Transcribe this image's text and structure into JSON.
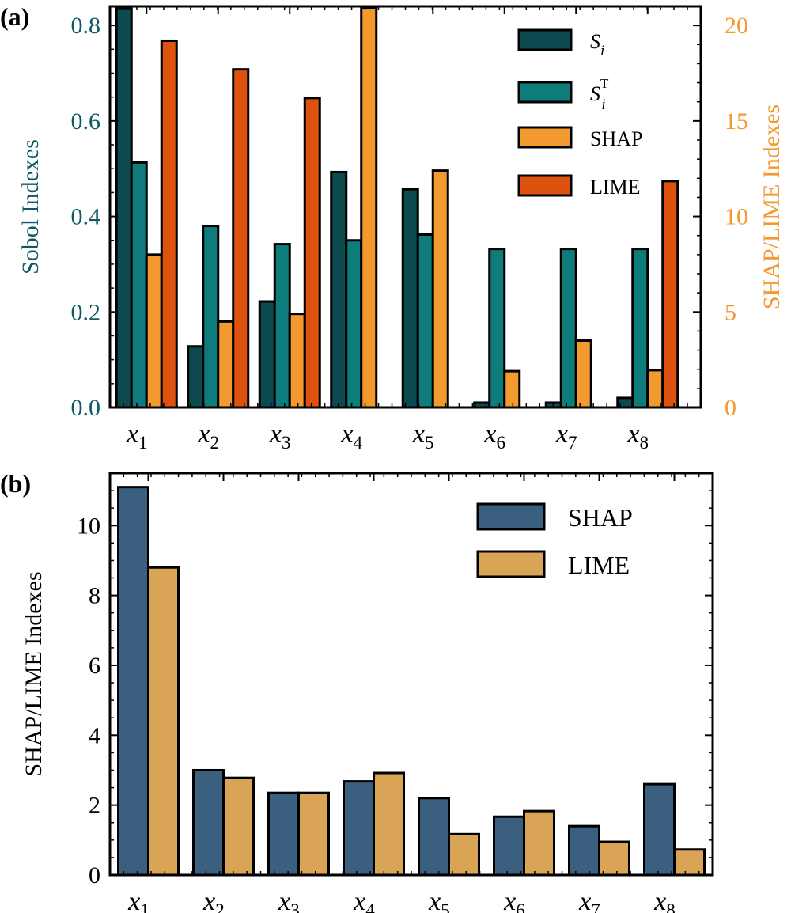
{
  "colors": {
    "si": "#0c4a50",
    "sit": "#0f7c7c",
    "shap_a": "#f29a30",
    "lime_a": "#dc520e",
    "shap_b": "#3b607f",
    "lime_b": "#d9a455",
    "axis_left_a": "#0e5a62",
    "axis_right_a": "#f29a30",
    "ink": "#000000"
  },
  "chart_data": [
    {
      "panel": "a",
      "panel_label": "(a)",
      "type": "bar",
      "categories": [
        "x1",
        "x2",
        "x3",
        "x4",
        "x5",
        "x6",
        "x7",
        "x8"
      ],
      "category_labels": [
        {
          "base": "x",
          "sub": "1"
        },
        {
          "base": "x",
          "sub": "2"
        },
        {
          "base": "x",
          "sub": "3"
        },
        {
          "base": "x",
          "sub": "4"
        },
        {
          "base": "x",
          "sub": "5"
        },
        {
          "base": "x",
          "sub": "6"
        },
        {
          "base": "x",
          "sub": "7"
        },
        {
          "base": "x",
          "sub": "8"
        }
      ],
      "ylabel": "Sobol Indexes",
      "ylabel2": "SHAP/LIME Indexes",
      "ylim": [
        0,
        0.84
      ],
      "ylim2": [
        0,
        21
      ],
      "yticks": [
        0.0,
        0.2,
        0.4,
        0.6,
        0.8
      ],
      "ytick_labels": [
        "0.0",
        "0.2",
        "0.4",
        "0.6",
        "0.8"
      ],
      "yticks2": [
        0,
        5,
        10,
        15,
        20
      ],
      "ytick_labels2": [
        "0",
        "5",
        "10",
        "15",
        "20"
      ],
      "legend_position": "top-right",
      "series": [
        {
          "name": "Si",
          "label_base": "S",
          "label_sub": "i",
          "label_sup": "",
          "axis": "left",
          "color_key": "si",
          "values": [
            0.835,
            0.128,
            0.222,
            0.493,
            0.457,
            0.01,
            0.01,
            0.02
          ]
        },
        {
          "name": "SiT",
          "label_base": "S",
          "label_sub": "i",
          "label_sup": "T",
          "axis": "left",
          "color_key": "sit",
          "values": [
            0.513,
            0.38,
            0.342,
            0.35,
            0.362,
            0.332,
            0.332,
            0.332
          ]
        },
        {
          "name": "SHAP",
          "label_base": "SHAP",
          "label_sub": "",
          "label_sup": "",
          "axis": "right",
          "color_key": "shap_a",
          "values": [
            8.0,
            4.5,
            4.9,
            20.9,
            12.4,
            1.9,
            3.5,
            1.95
          ]
        },
        {
          "name": "LIME",
          "label_base": "LIME",
          "label_sub": "",
          "label_sup": "",
          "axis": "right",
          "color_key": "lime_a",
          "values": [
            19.2,
            17.7,
            16.2,
            0,
            0,
            0,
            0,
            11.85
          ]
        }
      ]
    },
    {
      "panel": "b",
      "panel_label": "(b)",
      "type": "bar",
      "categories": [
        "x1",
        "x2",
        "x3",
        "x4",
        "x5",
        "x6",
        "x7",
        "x8"
      ],
      "category_labels": [
        {
          "base": "x",
          "sub": "1"
        },
        {
          "base": "x",
          "sub": "2"
        },
        {
          "base": "x",
          "sub": "3"
        },
        {
          "base": "x",
          "sub": "4"
        },
        {
          "base": "x",
          "sub": "5"
        },
        {
          "base": "x",
          "sub": "6"
        },
        {
          "base": "x",
          "sub": "7"
        },
        {
          "base": "x",
          "sub": "8"
        }
      ],
      "ylabel": "SHAP/LIME Indexes",
      "ylim": [
        0,
        11.5
      ],
      "yticks": [
        0,
        2,
        4,
        6,
        8,
        10
      ],
      "ytick_labels": [
        "0",
        "2",
        "4",
        "6",
        "8",
        "10"
      ],
      "legend_position": "top-right",
      "series": [
        {
          "name": "SHAP",
          "label_base": "SHAP",
          "label_sub": "",
          "label_sup": "",
          "color_key": "shap_b",
          "values": [
            11.1,
            3.0,
            2.35,
            2.68,
            2.2,
            1.67,
            1.4,
            2.6
          ]
        },
        {
          "name": "LIME",
          "label_base": "LIME",
          "label_sub": "",
          "label_sup": "",
          "color_key": "lime_b",
          "values": [
            8.8,
            2.78,
            2.35,
            2.92,
            1.17,
            1.83,
            0.95,
            0.73
          ]
        }
      ]
    }
  ]
}
